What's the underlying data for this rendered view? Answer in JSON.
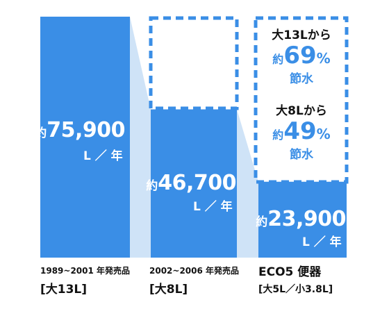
{
  "colors": {
    "bar": "#3a8ee6",
    "connector": "#cfe3f7",
    "text_dark": "#111111",
    "accent": "#3a8ee6"
  },
  "chart_data": {
    "type": "bar",
    "categories": [
      "1989~2001 年発売品 [大13L]",
      "2002~2006 年発売品 [大8L]",
      "ECO5 便器 [大5L／小3.8L]"
    ],
    "values": [
      75900,
      46700,
      23900
    ],
    "unit": "L／年",
    "ylim": [
      0,
      75900
    ],
    "grid": false,
    "legend": "none"
  },
  "labels": {
    "bar1": {
      "prefix": "約",
      "value": "75,900",
      "unit": "L ／ 年"
    },
    "bar2": {
      "prefix": "約",
      "value": "46,700",
      "unit": "L ／ 年"
    },
    "bar3": {
      "prefix": "約",
      "value": "23,900",
      "unit": "L ／ 年"
    }
  },
  "categories": {
    "cat1": {
      "line1": "1989~2001 年発売品",
      "line2": "[大13L]"
    },
    "cat2": {
      "line1": "2002~2006 年発売品",
      "line2": "[大8L]"
    },
    "cat3": {
      "line1": "ECO5 便器",
      "line2": "[大5L／小3.8L]"
    }
  },
  "savings": {
    "s1": {
      "from": "大13Lから",
      "prefix": "約",
      "percent": "69",
      "unit": "%",
      "note": "節水"
    },
    "s2": {
      "from": "大8Lから",
      "prefix": "約",
      "percent": "49",
      "unit": "%",
      "note": "節水"
    }
  }
}
